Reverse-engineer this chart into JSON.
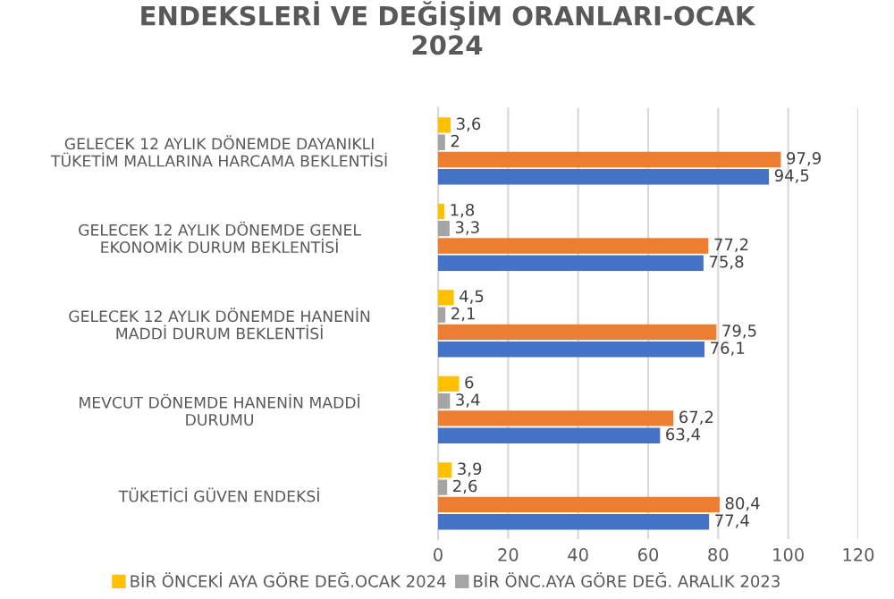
{
  "chart_data": {
    "type": "bar",
    "orientation": "horizontal",
    "title": "ENDEKSLERİ VE DEĞİŞİM ORANLARI-OCAK\n2024",
    "categories": [
      "GELECEK 12 AYLIK DÖNEMDE DAYANIKLI\nTÜKETİM MALLARINA HARCAMA BEKLENTİSİ",
      "GELECEK 12 AYLIK DÖNEMDE GENEL\nEKONOMİK DURUM BEKLENTİSİ",
      "GELECEK 12 AYLIK DÖNEMDE HANENİN\nMADDİ DURUM BEKLENTİSİ",
      "MEVCUT DÖNEMDE HANENİN MADDİ\nDURUMU",
      "TÜKETİCİ GÜVEN ENDEKSİ"
    ],
    "series": [
      {
        "name": "BİR ÖNCEKİ AYA GÖRE DEĞ.OCAK 2024",
        "color": "#ffc000",
        "values": [
          3.6,
          1.8,
          4.5,
          6,
          3.9
        ],
        "value_labels": [
          "3,6",
          "1,8",
          "4,5",
          "6",
          "3,9"
        ]
      },
      {
        "name": "BİR ÖNC.AYA GÖRE DEĞ. ARALIK 2023",
        "color": "#a5a5a5",
        "values": [
          2,
          3.3,
          2.1,
          3.4,
          2.6
        ],
        "value_labels": [
          "2",
          "3,3",
          "2,1",
          "3,4",
          "2,6"
        ]
      },
      {
        "color": "#ed7d31",
        "values": [
          97.9,
          77.2,
          79.5,
          67.2,
          80.4
        ],
        "value_labels": [
          "97,9",
          "77,2",
          "79,5",
          "67,2",
          "80,4"
        ]
      },
      {
        "color": "#4472c4",
        "values": [
          94.5,
          75.8,
          76.1,
          63.4,
          77.4
        ],
        "value_labels": [
          "94,5",
          "75,8",
          "76,1",
          "63,4",
          "77,4"
        ]
      }
    ],
    "xlim": [
      0,
      120
    ],
    "xticks": [
      0,
      20,
      40,
      60,
      80,
      100,
      120
    ],
    "grid": "x",
    "legend": "bottom"
  }
}
